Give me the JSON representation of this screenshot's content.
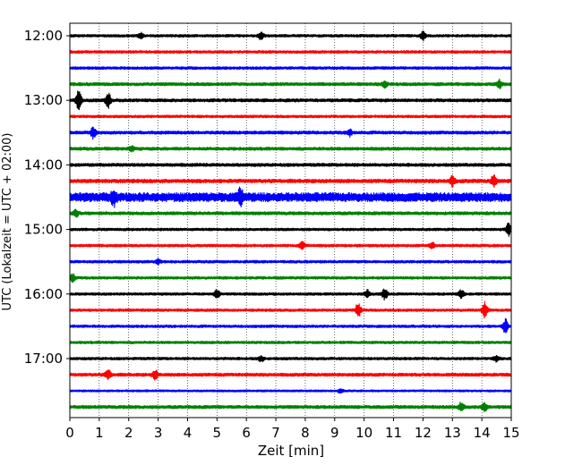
{
  "chart_data": {
    "type": "line",
    "title": "",
    "xlabel": "Zeit  [min]",
    "ylabel": "UTC (Lokalzeit = UTC + 02:00)",
    "xlim": [
      0,
      15
    ],
    "x_ticks": [
      "0",
      "1",
      "2",
      "3",
      "4",
      "5",
      "6",
      "7",
      "8",
      "9",
      "10",
      "11",
      "12",
      "13",
      "14",
      "15"
    ],
    "y_tick_labels": [
      "12:00",
      "13:00",
      "14:00",
      "15:00",
      "16:00",
      "17:00"
    ],
    "y_tick_trace_index": [
      0,
      4,
      8,
      12,
      16,
      20
    ],
    "grid": "vertical-dotted",
    "trace_colors": [
      "#000000",
      "#ff0000",
      "#0000ff",
      "#008000"
    ],
    "traces": [
      {
        "start": "12:00",
        "amplitude": 0.25,
        "events": [
          {
            "t": 2.4,
            "amp": 0.5
          },
          {
            "t": 6.5,
            "amp": 0.8
          },
          {
            "t": 12.0,
            "amp": 0.9
          }
        ]
      },
      {
        "start": "12:15",
        "amplitude": 0.25,
        "events": []
      },
      {
        "start": "12:30",
        "amplitude": 0.25,
        "events": []
      },
      {
        "start": "12:45",
        "amplitude": 0.3,
        "events": [
          {
            "t": 10.7,
            "amp": 0.6
          },
          {
            "t": 14.6,
            "amp": 0.7
          }
        ]
      },
      {
        "start": "13:00",
        "amplitude": 0.3,
        "events": [
          {
            "t": 0.3,
            "amp": 1.8
          },
          {
            "t": 1.3,
            "amp": 1.4
          }
        ]
      },
      {
        "start": "13:15",
        "amplitude": 0.25,
        "events": []
      },
      {
        "start": "13:30",
        "amplitude": 0.3,
        "events": [
          {
            "t": 0.8,
            "amp": 1.0
          },
          {
            "t": 9.5,
            "amp": 0.6
          }
        ]
      },
      {
        "start": "13:45",
        "amplitude": 0.3,
        "events": [
          {
            "t": 2.1,
            "amp": 0.4
          }
        ]
      },
      {
        "start": "14:00",
        "amplitude": 0.3,
        "events": []
      },
      {
        "start": "14:15",
        "amplitude": 0.35,
        "events": [
          {
            "t": 13.0,
            "amp": 0.8
          },
          {
            "t": 14.4,
            "amp": 1.0
          }
        ]
      },
      {
        "start": "14:30",
        "amplitude": 0.85,
        "events": [
          {
            "t": 1.5,
            "amp": 1.3
          },
          {
            "t": 5.8,
            "amp": 1.3
          }
        ]
      },
      {
        "start": "14:45",
        "amplitude": 0.3,
        "events": [
          {
            "t": 0.2,
            "amp": 0.6
          }
        ]
      },
      {
        "start": "15:00",
        "amplitude": 0.25,
        "events": [
          {
            "t": 14.9,
            "amp": 1.2
          }
        ]
      },
      {
        "start": "15:15",
        "amplitude": 0.25,
        "events": [
          {
            "t": 7.9,
            "amp": 0.8
          },
          {
            "t": 12.3,
            "amp": 0.6
          }
        ]
      },
      {
        "start": "15:30",
        "amplitude": 0.25,
        "events": [
          {
            "t": 3.0,
            "amp": 0.4
          }
        ]
      },
      {
        "start": "15:45",
        "amplitude": 0.25,
        "events": [
          {
            "t": 0.1,
            "amp": 0.7
          }
        ]
      },
      {
        "start": "16:00",
        "amplitude": 0.25,
        "events": [
          {
            "t": 5.0,
            "amp": 0.7
          },
          {
            "t": 10.1,
            "amp": 0.7
          },
          {
            "t": 10.7,
            "amp": 1.0
          },
          {
            "t": 13.3,
            "amp": 0.7
          }
        ]
      },
      {
        "start": "16:15",
        "amplitude": 0.25,
        "events": [
          {
            "t": 9.8,
            "amp": 1.3
          },
          {
            "t": 14.1,
            "amp": 1.4
          }
        ]
      },
      {
        "start": "16:30",
        "amplitude": 0.25,
        "events": [
          {
            "t": 14.8,
            "amp": 1.3
          }
        ]
      },
      {
        "start": "16:45",
        "amplitude": 0.25,
        "events": []
      },
      {
        "start": "17:00",
        "amplitude": 0.25,
        "events": [
          {
            "t": 6.5,
            "amp": 0.5
          },
          {
            "t": 14.5,
            "amp": 0.6
          }
        ]
      },
      {
        "start": "17:15",
        "amplitude": 0.3,
        "events": [
          {
            "t": 1.3,
            "amp": 1.0
          },
          {
            "t": 2.9,
            "amp": 0.8
          }
        ]
      },
      {
        "start": "17:30",
        "amplitude": 0.2,
        "events": [
          {
            "t": 9.2,
            "amp": 0.4
          }
        ]
      },
      {
        "start": "17:45",
        "amplitude": 0.3,
        "events": [
          {
            "t": 13.3,
            "amp": 0.8
          },
          {
            "t": 14.1,
            "amp": 0.7
          }
        ]
      }
    ]
  }
}
